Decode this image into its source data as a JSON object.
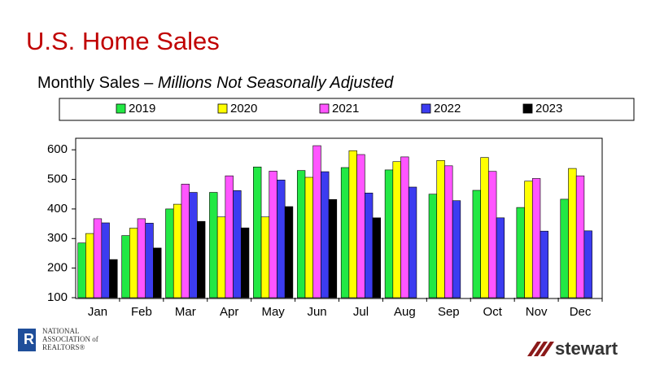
{
  "chart_data": {
    "type": "bar",
    "title": "U.S. Home Sales",
    "subtitle": "Monthly Sales – ",
    "subtitle_italic": "Millions Not Seasonally Adjusted",
    "categories": [
      "Jan",
      "Feb",
      "Mar",
      "Apr",
      "May",
      "Jun",
      "Jul",
      "Aug",
      "Sep",
      "Oct",
      "Nov",
      "Dec"
    ],
    "series": [
      {
        "name": "2019",
        "color": "#22e844",
        "values": [
          285,
          310,
          400,
          456,
          542,
          530,
          540,
          532,
          450,
          463,
          405,
          433
        ]
      },
      {
        "name": "2020",
        "color": "#ffff00",
        "values": [
          317,
          335,
          416,
          373,
          373,
          507,
          597,
          560,
          564,
          574,
          494,
          537
        ]
      },
      {
        "name": "2021",
        "color": "#ff55ff",
        "values": [
          367,
          367,
          484,
          512,
          528,
          614,
          584,
          576,
          546,
          527,
          503,
          512
        ]
      },
      {
        "name": "2022",
        "color": "#3c3cf0",
        "values": [
          353,
          352,
          456,
          462,
          498,
          526,
          454,
          474,
          428,
          370,
          325,
          326
        ]
      },
      {
        "name": "2023",
        "color": "#000000",
        "values": [
          229,
          268,
          358,
          336,
          408,
          432,
          370,
          null,
          null,
          null,
          null,
          null
        ]
      }
    ],
    "ylim": [
      100,
      650
    ],
    "yticks": [
      100,
      200,
      300,
      400,
      500,
      600
    ],
    "grid": false,
    "legend": "top",
    "logos": [
      "NATIONAL",
      "ASSOCIATION of",
      "REALTORS®",
      "stewart"
    ]
  }
}
